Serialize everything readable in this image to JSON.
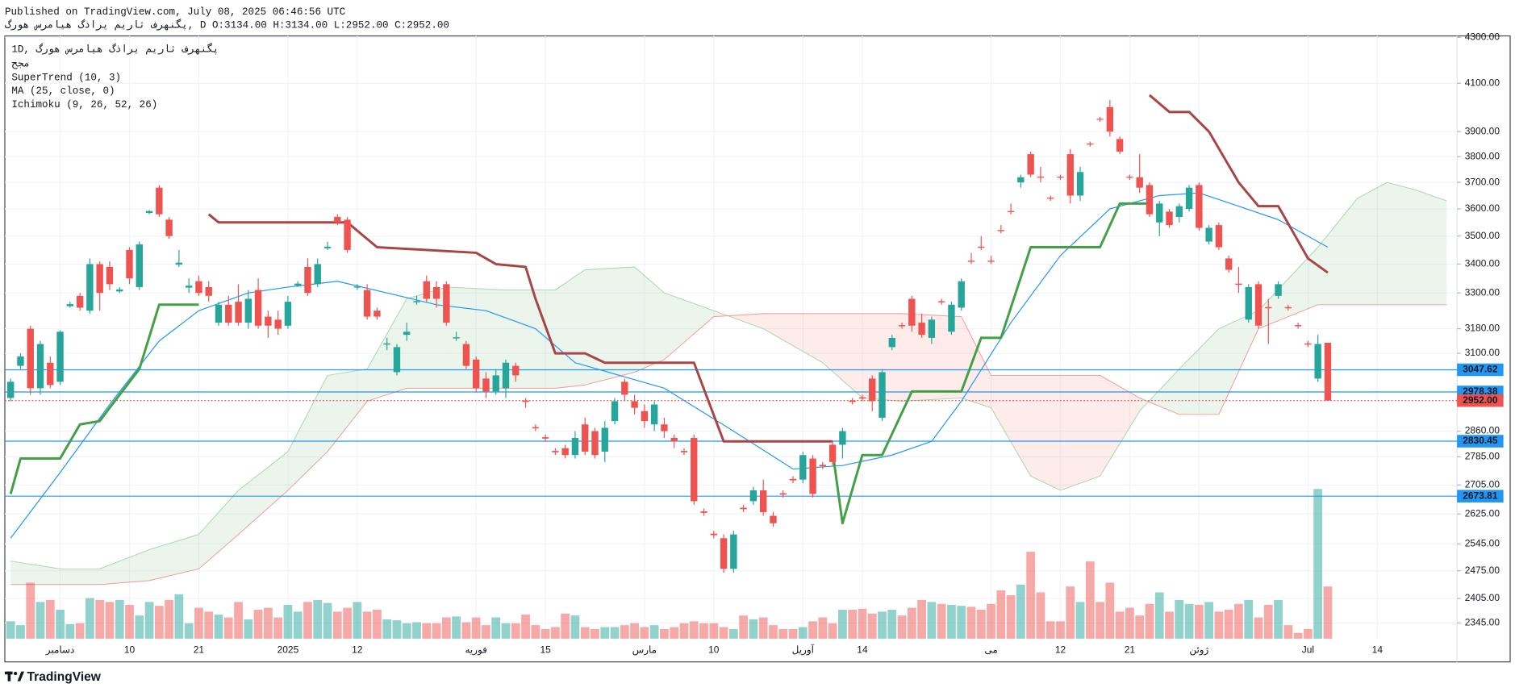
{
  "header": {
    "published": "Published on TradingView.com, July 08, 2025 06:46:56 UTC",
    "quote": "پگنهرف ثاریم یراذگ هیامرس هورگ, D O:3134.00 H:3134.00 L:2952.00 C:2952.00"
  },
  "footer": {
    "brand": "TradingView"
  },
  "chart_data": {
    "type": "candlestick",
    "legend": [
      "1D, پگنهرف ثاریم یراذگ هیامرس هورگ",
      "مجح",
      "SuperTrend (10, 3)",
      "MA (25, close, 0)",
      "Ichimoku (9, 26, 52, 26)"
    ],
    "log_scale": true,
    "grid": true,
    "up_color": "#26a69a",
    "down_color": "#ef5350",
    "ylim": [
      2307,
      4306
    ],
    "yticks": [
      {
        "value": 4300,
        "label": "4300.00"
      },
      {
        "value": 4100,
        "label": "4100.00"
      },
      {
        "value": 3900,
        "label": "3900.00"
      },
      {
        "value": 3800,
        "label": "3800.00"
      },
      {
        "value": 3700,
        "label": "3700.00"
      },
      {
        "value": 3600,
        "label": "3600.00"
      },
      {
        "value": 3500,
        "label": "3500.00"
      },
      {
        "value": 3400,
        "label": "3400.00"
      },
      {
        "value": 3300,
        "label": "3300.00"
      },
      {
        "value": 3180,
        "label": "3180.00"
      },
      {
        "value": 3100,
        "label": "3100.00"
      },
      {
        "value": 2860,
        "label": "2860.00"
      },
      {
        "value": 2785,
        "label": "2785.00"
      },
      {
        "value": 2705,
        "label": "2705.00"
      },
      {
        "value": 2625,
        "label": "2625.00"
      },
      {
        "value": 2545,
        "label": "2545.00"
      },
      {
        "value": 2475,
        "label": "2475.00"
      },
      {
        "value": 2405,
        "label": "2405.00"
      },
      {
        "value": 2345,
        "label": "2345.00"
      }
    ],
    "categories": [
      null,
      null,
      null,
      null,
      null,
      "دسامبر",
      null,
      null,
      null,
      null,
      null,
      null,
      "10",
      null,
      null,
      null,
      null,
      null,
      null,
      "21",
      null,
      null,
      null,
      null,
      null,
      null,
      null,
      null,
      "2025",
      null,
      null,
      null,
      null,
      null,
      null,
      "12",
      null,
      null,
      null,
      null,
      null,
      null,
      null,
      null,
      null,
      null,
      null,
      "فوریه",
      null,
      null,
      null,
      null,
      null,
      null,
      "15",
      null,
      null,
      null,
      null,
      null,
      null,
      null,
      null,
      null,
      "مارس",
      null,
      null,
      null,
      null,
      null,
      null,
      "10",
      null,
      null,
      null,
      null,
      null,
      null,
      null,
      null,
      "آوریل",
      null,
      null,
      null,
      null,
      null,
      "14",
      null,
      null,
      null,
      null,
      null,
      null,
      null,
      null,
      null,
      null,
      null,
      null,
      "می",
      null,
      null,
      null,
      null,
      null,
      null,
      "12",
      null,
      null,
      null,
      null,
      null,
      null,
      "21",
      null,
      null,
      null,
      null,
      null,
      null,
      "ژوئن",
      null,
      null,
      null,
      null,
      null,
      null,
      null,
      null,
      null,
      null,
      "Jul",
      null,
      null,
      null,
      null,
      null,
      null,
      "14",
      null,
      null,
      null,
      null,
      null,
      null,
      null
    ],
    "open": [
      2960,
      3060,
      3180,
      2990,
      3070,
      3010,
      3255,
      3290,
      3240,
      3400,
      3390,
      3305,
      3450,
      3320,
      3585,
      3680,
      3560,
      3398,
      3318,
      3340,
      3320,
      3200,
      3260,
      3270,
      3200,
      3310,
      3220,
      3210,
      3190,
      3326,
      3390,
      3330,
      3456,
      3570,
      3560,
      3318,
      3310,
      3240,
      3128,
      3040,
      3160,
      3268,
      3340,
      3320,
      3330,
      3148,
      3130,
      3080,
      3020,
      2980,
      2990,
      3060,
      2952,
      2872,
      2842,
      2802,
      2810,
      2790,
      2880,
      2860,
      2800,
      2890,
      3010,
      2950,
      2920,
      2880,
      2880,
      2840,
      2802,
      2840,
      2632,
      2572,
      2560,
      2480,
      2642,
      2660,
      2690,
      2620,
      2682,
      2722,
      2720,
      2780,
      2762,
      2820,
      2820,
      2952,
      2962,
      3020,
      2900,
      3120,
      3192,
      3280,
      3200,
      3150,
      3272,
      3170,
      3250,
      3412,
      3462,
      3412,
      3522,
      3592,
      3700,
      3810,
      3722,
      3642,
      3722,
      3810,
      3650,
      3852,
      3952,
      4000,
      3870,
      3722,
      3720,
      3690,
      3550,
      3590,
      3570,
      3600,
      3690,
      3480,
      3540,
      3420,
      3332,
      3210,
      3330,
      3252,
      3290,
      3252,
      3192,
      3132,
      3020,
      3134,
      null,
      null,
      null,
      null,
      null,
      null,
      null,
      null,
      null,
      null,
      null,
      null
    ],
    "high": [
      3020,
      3100,
      3190,
      3140,
      3090,
      3175,
      3270,
      3300,
      3420,
      3410,
      3410,
      3320,
      3460,
      3480,
      3595,
      3690,
      3570,
      3450,
      3350,
      3360,
      3340,
      3270,
      3290,
      3330,
      3310,
      3350,
      3240,
      3240,
      3290,
      3340,
      3420,
      3420,
      3480,
      3580,
      3570,
      3330,
      3330,
      3250,
      3150,
      3130,
      3200,
      3290,
      3360,
      3340,
      3340,
      3170,
      3140,
      3090,
      3040,
      3050,
      3080,
      3070,
      2960,
      2880,
      2850,
      2810,
      2820,
      2860,
      2900,
      2870,
      2890,
      2960,
      3020,
      2970,
      2940,
      2950,
      2900,
      2850,
      2810,
      2850,
      2640,
      2580,
      2570,
      2580,
      2650,
      2700,
      2720,
      2630,
      2690,
      2730,
      2800,
      2790,
      2770,
      2830,
      2870,
      2960,
      2970,
      3030,
      3050,
      3160,
      3200,
      3290,
      3230,
      3220,
      3280,
      3270,
      3350,
      3440,
      3500,
      3430,
      3540,
      3620,
      3730,
      3820,
      3760,
      3650,
      3730,
      3830,
      3760,
      3860,
      3960,
      4030,
      3880,
      3730,
      3810,
      3700,
      3630,
      3600,
      3620,
      3690,
      3700,
      3540,
      3550,
      3430,
      3390,
      3330,
      3340,
      3280,
      3340,
      3260,
      3200,
      3140,
      3160,
      3134,
      null,
      null,
      null,
      null,
      null,
      null,
      null,
      null,
      null,
      null,
      null,
      null
    ],
    "low": [
      2950,
      3050,
      2970,
      2970,
      2990,
      3000,
      3250,
      3240,
      3230,
      3240,
      3310,
      3300,
      3330,
      3310,
      3580,
      3570,
      3490,
      3390,
      3300,
      3290,
      3270,
      3190,
      3190,
      3190,
      3180,
      3180,
      3150,
      3160,
      3180,
      3320,
      3290,
      3320,
      3450,
      3540,
      3440,
      3310,
      3210,
      3210,
      3110,
      3030,
      3140,
      3260,
      3270,
      3250,
      3190,
      3140,
      3050,
      2980,
      2960,
      2970,
      2960,
      3010,
      2930,
      2860,
      2830,
      2790,
      2780,
      2780,
      2790,
      2780,
      2770,
      2880,
      2950,
      2910,
      2870,
      2860,
      2840,
      2810,
      2790,
      2650,
      2620,
      2560,
      2470,
      2470,
      2630,
      2650,
      2620,
      2590,
      2670,
      2710,
      2710,
      2670,
      2750,
      2760,
      2780,
      2940,
      2950,
      2920,
      2890,
      3110,
      3180,
      3170,
      3150,
      3130,
      3260,
      3160,
      3240,
      3400,
      3450,
      3400,
      3510,
      3580,
      3680,
      3720,
      3700,
      3630,
      3710,
      3620,
      3630,
      3840,
      3940,
      3880,
      3810,
      3710,
      3660,
      3570,
      3500,
      3530,
      3550,
      3590,
      3520,
      3470,
      3450,
      3370,
      3300,
      3200,
      3180,
      3130,
      3280,
      3240,
      3180,
      3120,
      3010,
      2952,
      null,
      null,
      null,
      null,
      null,
      null,
      null,
      null,
      null,
      null,
      null,
      null
    ],
    "close": [
      3010,
      3090,
      2990,
      3130,
      3000,
      3170,
      3262,
      3250,
      3400,
      3300,
      3330,
      3312,
      3350,
      3470,
      3592,
      3580,
      3500,
      3405,
      3325,
      3300,
      3290,
      3260,
      3200,
      3200,
      3280,
      3190,
      3190,
      3180,
      3270,
      3332,
      3300,
      3400,
      3462,
      3550,
      3450,
      3322,
      3220,
      3220,
      3132,
      3120,
      3170,
      3272,
      3280,
      3280,
      3200,
      3152,
      3060,
      2990,
      2980,
      3030,
      3070,
      3030,
      2948,
      2868,
      2838,
      2798,
      2790,
      2840,
      2800,
      2790,
      2870,
      2950,
      2970,
      2930,
      2890,
      2940,
      2860,
      2830,
      2798,
      2660,
      2628,
      2568,
      2480,
      2570,
      2638,
      2690,
      2630,
      2600,
      2678,
      2718,
      2790,
      2680,
      2758,
      2770,
      2860,
      2948,
      2958,
      2950,
      3040,
      3150,
      3188,
      3190,
      3160,
      3210,
      3268,
      3260,
      3340,
      3408,
      3458,
      3408,
      3518,
      3588,
      3720,
      3730,
      3718,
      3638,
      3718,
      3650,
      3740,
      3848,
      3948,
      3900,
      3820,
      3718,
      3680,
      3580,
      3620,
      3540,
      3610,
      3680,
      3530,
      3530,
      3460,
      3380,
      3328,
      3320,
      3190,
      3248,
      3330,
      3248,
      3188,
      3128,
      3130,
      2952,
      null,
      null,
      null,
      null,
      null,
      null,
      null,
      null,
      null,
      null,
      null,
      null
    ],
    "volume": [
      18,
      14,
      58,
      38,
      40,
      30,
      15,
      16,
      42,
      40,
      38,
      40,
      35,
      24,
      38,
      34,
      40,
      46,
      16,
      32,
      28,
      25,
      22,
      38,
      20,
      30,
      32,
      22,
      35,
      28,
      38,
      40,
      37,
      28,
      32,
      38,
      28,
      30,
      20,
      19,
      16,
      17,
      16,
      16,
      22,
      23,
      17,
      22,
      14,
      22,
      16,
      16,
      25,
      14,
      10,
      12,
      26,
      24,
      12,
      10,
      12,
      12,
      14,
      16,
      12,
      14,
      10,
      12,
      16,
      18,
      16,
      16,
      12,
      10,
      24,
      20,
      22,
      14,
      10,
      10,
      12,
      18,
      22,
      16,
      30,
      30,
      31,
      26,
      28,
      30,
      24,
      32,
      40,
      38,
      36,
      35,
      34,
      33,
      30,
      36,
      50,
      45,
      56,
      90,
      48,
      18,
      18,
      54,
      38,
      80,
      38,
      58,
      28,
      32,
      24,
      36,
      48,
      28,
      40,
      36,
      35,
      38,
      28,
      30,
      36,
      40,
      22,
      35,
      40,
      14,
      6,
      10,
      155,
      54,
      null,
      null,
      null,
      null,
      null,
      null,
      null,
      null,
      null,
      null,
      null,
      null
    ],
    "supertrend": [
      {
        "color": "#43a047",
        "x": [
          0,
          1,
          5,
          7,
          9,
          10,
          13,
          15,
          19
        ],
        "values": [
          2680,
          2780,
          2780,
          2880,
          2890,
          2930,
          3050,
          3260,
          3260
        ]
      },
      {
        "color": "#a84545",
        "x": [
          20,
          21,
          34,
          37,
          47,
          49,
          52,
          53,
          55,
          58,
          60,
          69,
          72,
          83
        ],
        "values": [
          3580,
          3550,
          3550,
          3460,
          3440,
          3400,
          3390,
          3280,
          3100,
          3100,
          3070,
          3070,
          2830,
          2830
        ]
      },
      {
        "color": "#43a047",
        "x": [
          83,
          84,
          86,
          88,
          91,
          96,
          98,
          100,
          103,
          110,
          112,
          115
        ],
        "values": [
          2800,
          2600,
          2790,
          2790,
          2980,
          2980,
          3150,
          3150,
          3460,
          3460,
          3620,
          3620
        ]
      },
      {
        "color": "#a84545",
        "x": [
          115,
          117,
          119,
          121,
          124,
          126,
          128,
          131,
          133
        ],
        "values": [
          4050,
          3980,
          3980,
          3900,
          3700,
          3610,
          3610,
          3420,
          3370
        ]
      }
    ],
    "ma": {
      "color": "#2196f3",
      "x": [
        0,
        5,
        10,
        15,
        19,
        24,
        28,
        33,
        38,
        43,
        48,
        53,
        57,
        66,
        73,
        79,
        84,
        89,
        93,
        96,
        101,
        106,
        111,
        116,
        120,
        124,
        128,
        133
      ],
      "values": [
        2560,
        2740,
        2940,
        3140,
        3240,
        3300,
        3320,
        3340,
        3300,
        3260,
        3240,
        3180,
        3070,
        2990,
        2860,
        2750,
        2760,
        2790,
        2830,
        2950,
        3200,
        3430,
        3600,
        3650,
        3660,
        3610,
        3560,
        3460
      ]
    },
    "ichimoku": {
      "x": [
        0,
        5,
        9,
        14,
        19,
        23,
        28,
        32,
        36,
        40,
        44,
        50,
        55,
        58,
        63,
        66,
        71,
        76,
        82,
        86,
        90,
        96,
        99,
        103,
        106,
        110,
        114,
        118,
        122,
        126,
        132,
        136,
        139,
        142,
        145
      ],
      "span_a": [
        2500,
        2480,
        2480,
        2530,
        2570,
        2690,
        2800,
        3030,
        3050,
        3280,
        3320,
        3310,
        3310,
        3380,
        3390,
        3300,
        3240,
        3180,
        3070,
        2960,
        2950,
        2960,
        2930,
        2730,
        2690,
        2730,
        2920,
        3050,
        3180,
        3240,
        3460,
        3640,
        3700,
        3670,
        3630
      ],
      "span_b": [
        2440,
        2440,
        2440,
        2450,
        2480,
        2570,
        2690,
        2800,
        2950,
        2990,
        2990,
        2990,
        2990,
        3000,
        3040,
        3080,
        3220,
        3230,
        3230,
        3230,
        3230,
        3220,
        3030,
        3030,
        3030,
        3030,
        2960,
        2910,
        2910,
        3180,
        3260,
        3260,
        3260,
        3260,
        3260
      ],
      "color_a": "#a5d6a7",
      "color_b": "#ef9a9a",
      "fill_up": "rgba(67,160,71,0.1)",
      "fill_down": "rgba(244,67,54,0.1)"
    },
    "price_lines": [
      {
        "value": 3047.62,
        "label": "3047.62",
        "color": "#2196f3"
      },
      {
        "value": 2978.38,
        "label": "2978.38",
        "color": "#2196f3"
      },
      {
        "value": 2952.0,
        "label": "2952.00",
        "color": "#ef5350"
      },
      {
        "value": 2830.45,
        "label": "2830.45",
        "color": "#2196f3"
      },
      {
        "value": 2673.81,
        "label": "2673.81",
        "color": "#2196f3"
      }
    ]
  }
}
